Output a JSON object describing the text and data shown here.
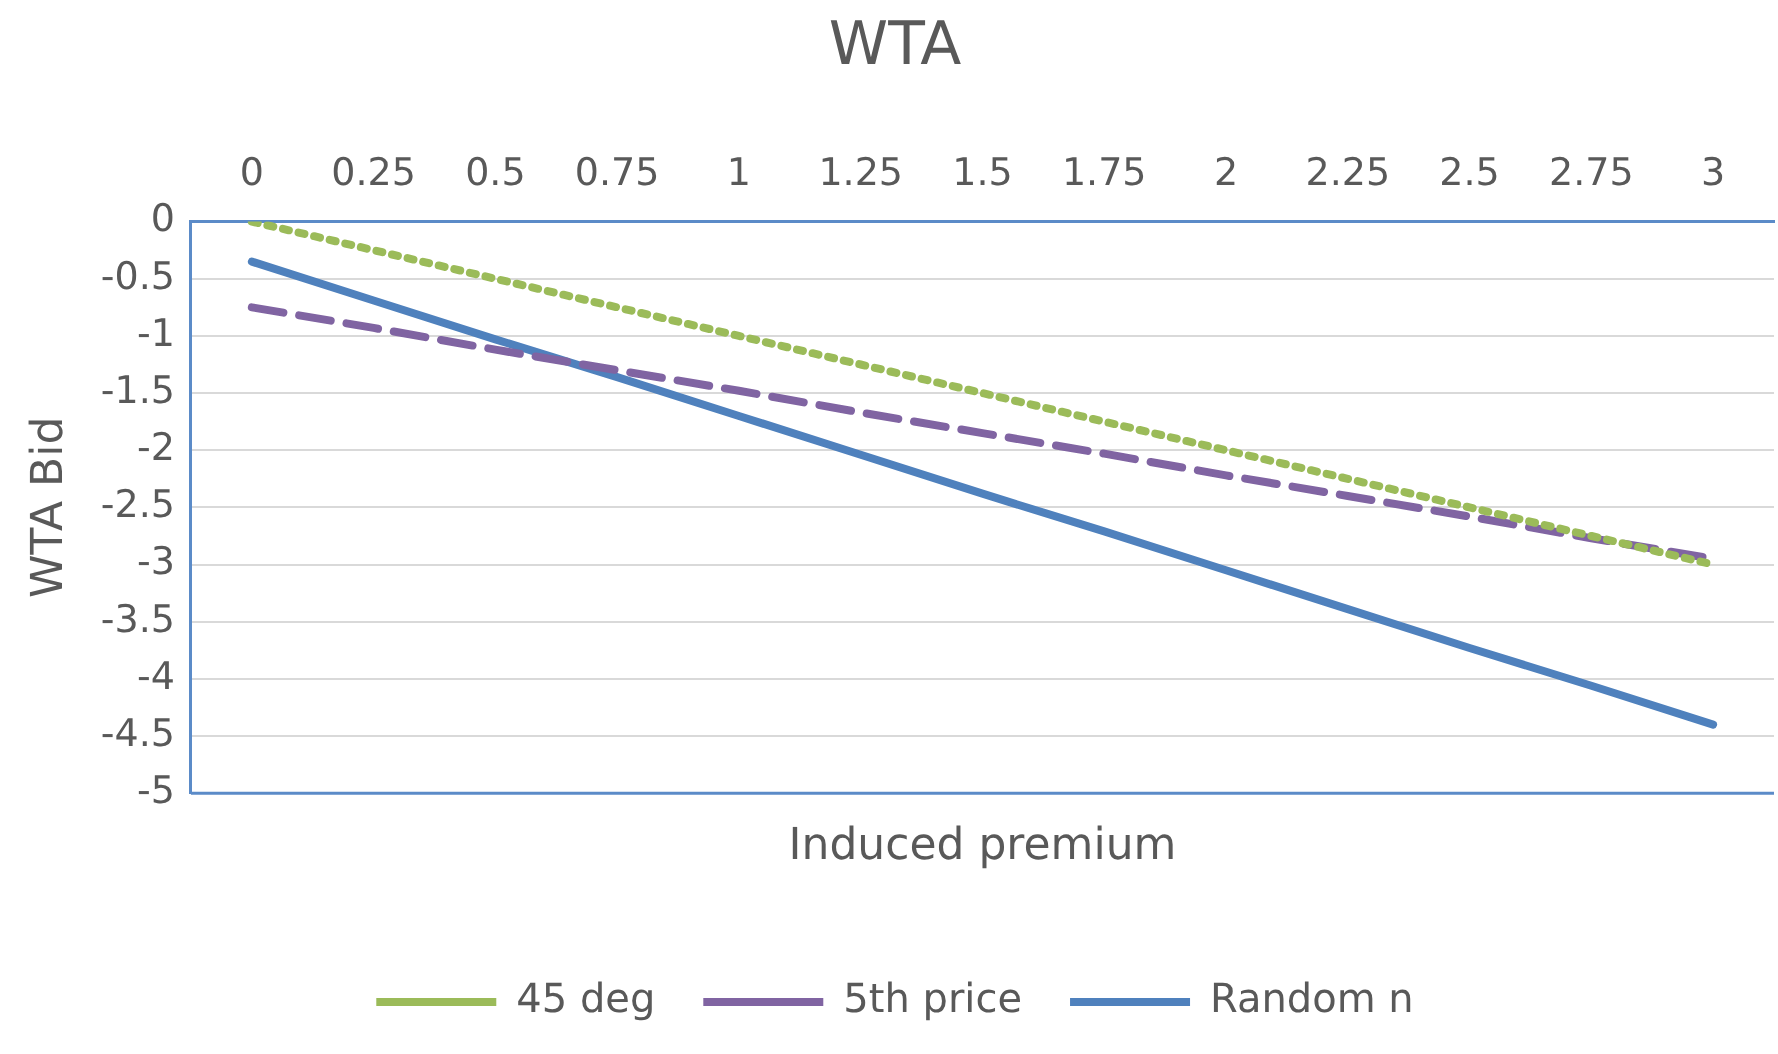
{
  "chart_data": {
    "type": "line",
    "title": "WTA",
    "xlabel": "Induced premium",
    "ylabel": "WTA Bid",
    "categories": [
      "0",
      "0.25",
      "0.5",
      "0.75",
      "1",
      "1.25",
      "1.5",
      "1.75",
      "2",
      "2.25",
      "2.5",
      "2.75",
      "3"
    ],
    "series": [
      {
        "name": "45 deg",
        "color": "#9bbb59",
        "line_style": "dotted",
        "values": [
          0,
          -0.25,
          -0.5,
          -0.75,
          -1,
          -1.25,
          -1.5,
          -1.75,
          -2,
          -2.25,
          -2.5,
          -2.75,
          -3
        ]
      },
      {
        "name": "5th price",
        "color": "#8064a2",
        "line_style": "dashed",
        "values": [
          -0.75,
          -0.93,
          -1.12,
          -1.3,
          -1.48,
          -1.67,
          -1.85,
          -2.03,
          -2.22,
          -2.4,
          -2.58,
          -2.77,
          -2.95
        ]
      },
      {
        "name": "Random n",
        "color": "#4f81bd",
        "line_style": "solid",
        "values": [
          -0.35,
          -0.69,
          -1.03,
          -1.36,
          -1.7,
          -2.04,
          -2.38,
          -2.71,
          -3.05,
          -3.39,
          -3.73,
          -4.06,
          -4.4
        ]
      }
    ],
    "ylim": [
      -5,
      0
    ],
    "yticks": [
      0,
      -0.5,
      -1,
      -1.5,
      -2,
      -2.5,
      -3,
      -3.5,
      -4,
      -4.5,
      -5
    ],
    "grid": "y",
    "legend": "bottom",
    "marker": "none"
  }
}
